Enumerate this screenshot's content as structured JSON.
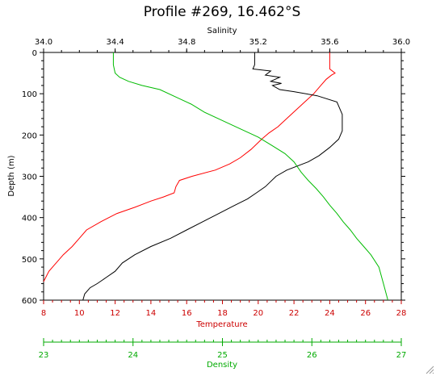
{
  "chart_data": {
    "type": "line",
    "title": "Profile #269, 16.462°S",
    "ylabel": "Depth (m)",
    "ylim": [
      600,
      0
    ],
    "y_ticks": [
      "0",
      "100",
      "200",
      "300",
      "400",
      "500",
      "600"
    ],
    "grid": false,
    "axes": {
      "salinity": {
        "label": "Salinity",
        "range": [
          34.0,
          36.0
        ],
        "ticks": [
          "34.0",
          "34.4",
          "34.8",
          "35.2",
          "35.6",
          "36.0"
        ],
        "color": "#000000"
      },
      "temperature": {
        "label": "Temperature",
        "range": [
          8,
          28
        ],
        "ticks": [
          "8",
          "10",
          "12",
          "14",
          "16",
          "18",
          "20",
          "22",
          "24",
          "26",
          "28"
        ],
        "color": "#cc0000"
      },
      "density": {
        "label": "Density",
        "range": [
          23,
          27
        ],
        "ticks": [
          "23",
          "24",
          "25",
          "26",
          "27"
        ],
        "color": "#00aa00"
      }
    },
    "series": [
      {
        "axis": "temperature",
        "color": "#ff0000",
        "x": [
          24.0,
          24.0,
          24.0,
          24.3,
          24.1,
          23.8,
          23.5,
          23.1,
          22.6,
          22.1,
          21.6,
          21.1,
          20.6,
          20.2,
          19.6,
          19.0,
          18.4,
          17.6,
          16.3,
          15.6,
          15.4,
          15.3,
          14.7,
          14.0,
          13.1,
          12.1,
          11.2,
          10.4,
          10.0,
          9.6,
          9.1,
          8.7,
          8.3,
          8.0
        ],
        "y": [
          0,
          20,
          40,
          50,
          55,
          65,
          80,
          100,
          120,
          140,
          160,
          180,
          195,
          210,
          235,
          255,
          270,
          285,
          300,
          310,
          325,
          340,
          350,
          360,
          375,
          390,
          410,
          430,
          450,
          470,
          490,
          510,
          530,
          555
        ]
      },
      {
        "axis": "salinity",
        "color": "#000000",
        "x": [
          35.18,
          35.18,
          35.17,
          35.27,
          35.24,
          35.32,
          35.27,
          35.33,
          35.28,
          35.32,
          35.4,
          35.53,
          35.64,
          35.67,
          35.67,
          35.65,
          35.6,
          35.54,
          35.48,
          35.42,
          35.36,
          35.3,
          35.24,
          35.19,
          35.14,
          35.07,
          34.98,
          34.89,
          34.8,
          34.71,
          34.6,
          34.51,
          34.44,
          34.4,
          34.35,
          34.3,
          34.26,
          34.23,
          34.22
        ],
        "y": [
          0,
          30,
          40,
          45,
          55,
          60,
          70,
          75,
          80,
          90,
          95,
          105,
          120,
          150,
          190,
          210,
          230,
          250,
          265,
          275,
          285,
          300,
          325,
          340,
          355,
          370,
          390,
          410,
          430,
          450,
          470,
          490,
          510,
          530,
          545,
          560,
          570,
          585,
          600
        ]
      },
      {
        "axis": "density",
        "color": "#00bb00",
        "x": [
          23.78,
          23.78,
          23.8,
          23.85,
          23.95,
          24.1,
          24.3,
          24.5,
          24.65,
          24.8,
          25.0,
          25.2,
          25.4,
          25.55,
          25.7,
          25.8,
          25.88,
          25.96,
          26.05,
          26.13,
          26.2,
          26.28,
          26.35,
          26.43,
          26.5,
          26.58,
          26.66,
          26.75,
          26.8,
          26.85
        ],
        "y": [
          0,
          30,
          50,
          60,
          70,
          80,
          90,
          110,
          125,
          145,
          165,
          185,
          205,
          225,
          245,
          265,
          290,
          310,
          330,
          350,
          370,
          390,
          410,
          430,
          450,
          470,
          490,
          520,
          560,
          600
        ]
      }
    ]
  }
}
